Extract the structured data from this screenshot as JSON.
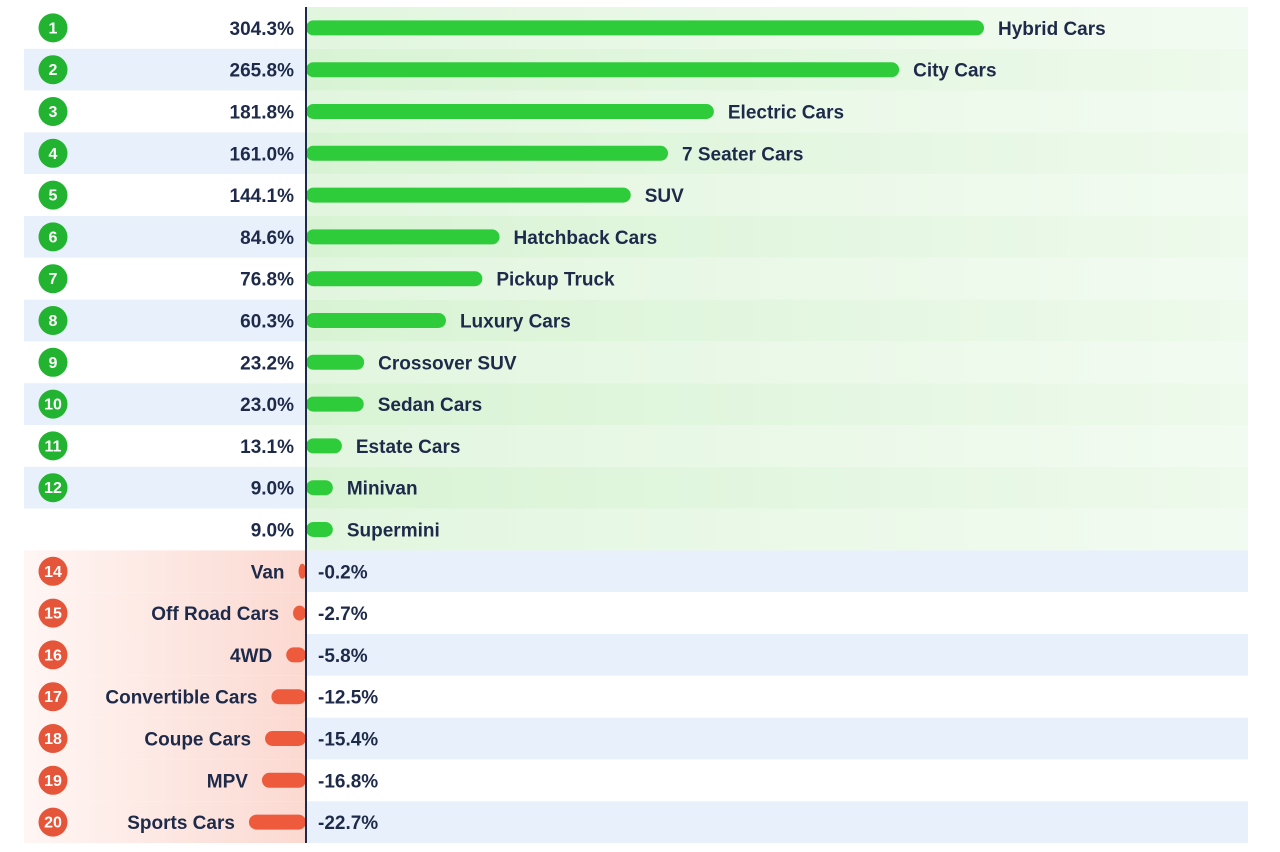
{
  "chart_data": {
    "type": "bar",
    "orientation": "horizontal",
    "title": "",
    "xlabel": "",
    "ylabel": "",
    "grid": false,
    "legend": "none",
    "xlim": [
      -30,
      320
    ],
    "colors": {
      "positive_bar": "#2ecc3a",
      "negative_bar": "#ee5a3c",
      "positive_rank": "#22b430",
      "negative_rank": "#e4553a",
      "text": "#1e2a4a",
      "axis": "#1e2a4a"
    },
    "rows": [
      {
        "rank": "1",
        "category": "Hybrid Cars",
        "value": 304.3,
        "label": "304.3%"
      },
      {
        "rank": "2",
        "category": "City Cars",
        "value": 265.8,
        "label": "265.8%"
      },
      {
        "rank": "3",
        "category": "Electric Cars",
        "value": 181.8,
        "label": "181.8%"
      },
      {
        "rank": "4",
        "category": "7 Seater Cars",
        "value": 161.0,
        "label": "161.0%"
      },
      {
        "rank": "5",
        "category": "SUV",
        "value": 144.1,
        "label": "144.1%"
      },
      {
        "rank": "6",
        "category": "Hatchback Cars",
        "value": 84.6,
        "label": "84.6%"
      },
      {
        "rank": "7",
        "category": "Pickup Truck",
        "value": 76.8,
        "label": "76.8%"
      },
      {
        "rank": "8",
        "category": "Luxury Cars",
        "value": 60.3,
        "label": "60.3%"
      },
      {
        "rank": "9",
        "category": "Crossover SUV",
        "value": 23.2,
        "label": "23.2%"
      },
      {
        "rank": "10",
        "category": "Sedan Cars",
        "value": 23.0,
        "label": "23.0%"
      },
      {
        "rank": "11",
        "category": "Estate Cars",
        "value": 13.1,
        "label": "13.1%"
      },
      {
        "rank": "12",
        "category": "Minivan",
        "value": 9.0,
        "label": "9.0%"
      },
      {
        "rank": "",
        "category": "Supermini",
        "value": 9.0,
        "label": "9.0%"
      },
      {
        "rank": "14",
        "category": "Van",
        "value": -0.2,
        "label": "-0.2%"
      },
      {
        "rank": "15",
        "category": "Off Road Cars",
        "value": -2.7,
        "label": "-2.7%"
      },
      {
        "rank": "16",
        "category": "4WD",
        "value": -5.8,
        "label": "-5.8%"
      },
      {
        "rank": "17",
        "category": "Convertible Cars",
        "value": -12.5,
        "label": "-12.5%"
      },
      {
        "rank": "18",
        "category": "Coupe Cars",
        "value": -15.4,
        "label": "-15.4%"
      },
      {
        "rank": "19",
        "category": "MPV",
        "value": -16.8,
        "label": "-16.8%"
      },
      {
        "rank": "20",
        "category": "Sports Cars",
        "value": -22.7,
        "label": "-22.7%"
      }
    ]
  }
}
